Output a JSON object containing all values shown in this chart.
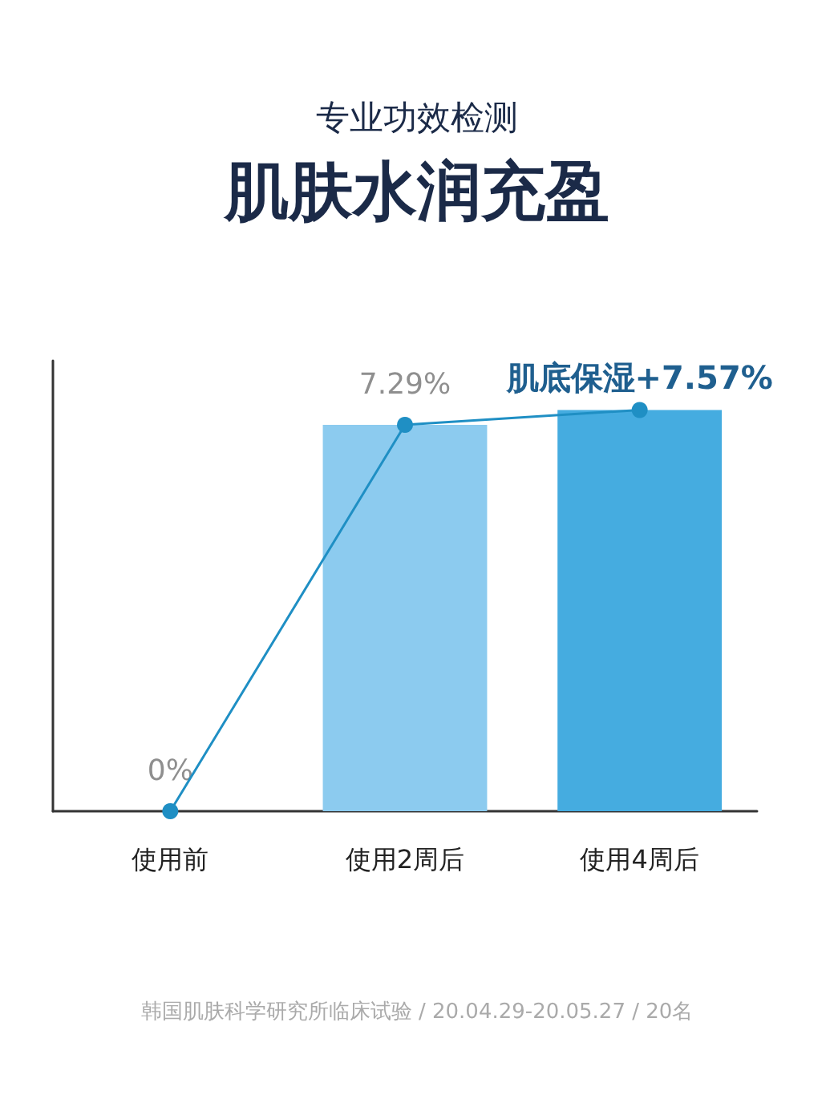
{
  "chart_data": {
    "type": "bar",
    "title": "肌肤水润充盈",
    "subtitle": "专业功效检测",
    "categories": [
      "使用前",
      "使用2周后",
      "使用4周后"
    ],
    "series": [
      {
        "colors": [
          "#c5e6f8",
          "#8ccbef",
          "#45ace0"
        ],
        "values": [
          0,
          7.29,
          7.57
        ],
        "value_labels": [
          "0%",
          "7.29%",
          "肌底保湿+7.57%"
        ]
      },
      {
        "type": "line",
        "color": "#1f8fc4",
        "values": [
          0,
          7.29,
          7.57
        ],
        "marker": "circle"
      }
    ],
    "ylim": [
      0,
      8.5
    ],
    "tick_labels": "x",
    "annotations": [
      "韩国肌肤科学研究所临床试验 / 20.04.29-20.05.27 / 20名"
    ]
  }
}
